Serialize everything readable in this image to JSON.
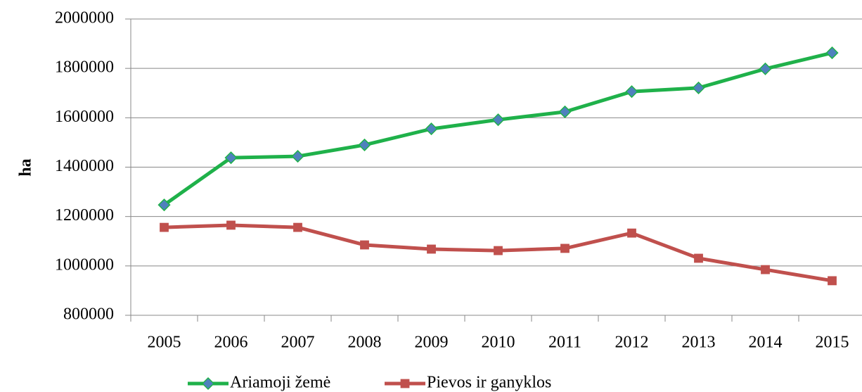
{
  "chart_data": {
    "type": "line",
    "categories": [
      "2005",
      "2006",
      "2007",
      "2008",
      "2009",
      "2010",
      "2011",
      "2012",
      "2013",
      "2014",
      "2015"
    ],
    "ylabel": "ha",
    "ylim": [
      800000,
      2000000
    ],
    "yticks": [
      800000,
      1000000,
      1200000,
      1400000,
      1600000,
      1800000,
      2000000
    ],
    "grid": true,
    "legend": "bottom",
    "series": [
      {
        "name": "Ariamoji žemė",
        "color": "#1fb14a",
        "marker": "diamond",
        "marker_color": "#4f81bd",
        "values": [
          1247000,
          1438000,
          1444000,
          1490000,
          1555000,
          1592000,
          1624000,
          1706000,
          1721000,
          1798000,
          1863000
        ]
      },
      {
        "name": "Pievos ir ganyklos",
        "color": "#c0504d",
        "marker": "square",
        "marker_color": "#c0504d",
        "values": [
          1156000,
          1165000,
          1156000,
          1085000,
          1068000,
          1062000,
          1071000,
          1133000,
          1031000,
          985000,
          940000
        ]
      }
    ]
  }
}
